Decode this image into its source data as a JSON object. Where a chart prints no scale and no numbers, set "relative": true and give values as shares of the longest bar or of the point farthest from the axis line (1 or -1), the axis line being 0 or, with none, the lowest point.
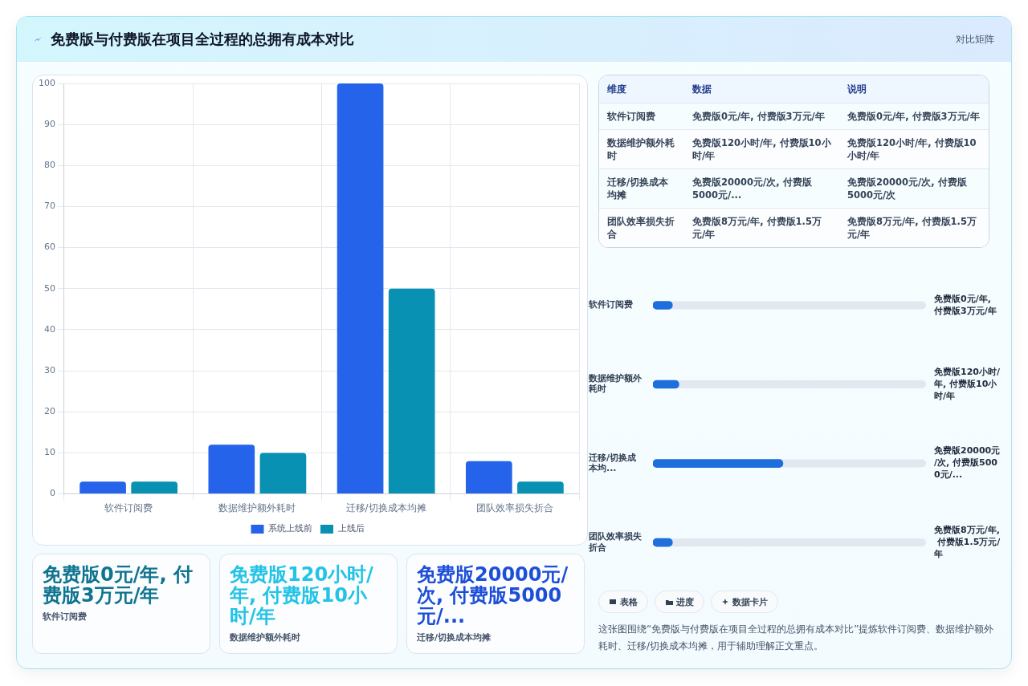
{
  "chart_data": [
    {
      "type": "bar",
      "title": "免费版与付费版在项目全过程的总拥有成本对比",
      "categories": [
        "软件订阅费",
        "数据维护额外耗时",
        "迁移/切换成本均摊",
        "团队效率损失折合"
      ],
      "series": [
        {
          "name": "系统上线前",
          "color": "#2563eb",
          "values": [
            3,
            12,
            100,
            8
          ]
        },
        {
          "name": "上线后",
          "color": "#0891b2",
          "values": [
            3,
            10,
            50,
            3
          ]
        }
      ],
      "ylim": [
        0,
        100
      ],
      "yticks": [
        0,
        10,
        20,
        30,
        40,
        50,
        60,
        70,
        80,
        90,
        100
      ],
      "grid": true,
      "legend": "bottom"
    },
    {
      "type": "other",
      "title": "对比矩阵",
      "annotations": [
        "维度",
        "数据",
        "说明",
        "软件订阅费",
        "免费版0元/年, 付费版3万元/年",
        "免费版0元/年, 付费版3万元/年",
        "数据维护额外耗时",
        "免费版120小时/年, 付费版10小时/年",
        "免费版120小时/年, 付费版10小时/年",
        "迁移/切换成本均摊",
        "免费版20000元/次, 付费版5000元/...",
        "免费版20000元/次, 付费版5000元/次",
        "团队效率损失折合",
        "免费版8万元/年, 付费版1.5万元/年",
        "免费版8万元/年, 付费版1.5万元/年"
      ]
    },
    {
      "type": "bar",
      "orientation": "horizontal",
      "relative": true,
      "categories": [
        "软件订阅费",
        "数据维护额外耗时",
        "迁移/切换成本均...",
        "团队效率损失折合"
      ],
      "values": [
        0.15,
        0.2,
        1,
        0.15
      ],
      "color": "#1e6fdc",
      "annotations": [
        "免费版0元/年, 付费版3万元/年",
        "免费版120小时/年, 付费版10小时/年",
        "免费版20000元/次, 付费版5000元/...",
        "免费版8万元/年, 付费版1.5万元/年"
      ]
    },
    {
      "type": "other",
      "annotations": [
        "免费版0元/年, 付费版3万元/年",
        "软件订阅费",
        "免费版120小时/年, 付费版10小时/年",
        "数据维护额外耗时",
        "免费版20000元/次, 付费版5000元/...",
        "迁移/切换成本均摊"
      ]
    },
    {
      "type": "other",
      "annotations": [
        "表格",
        "进度",
        "数据卡片",
        "这张图围绕“免费版与付费版在项目全过程的总拥有成本对比”提炼软件订阅费、数据维护额外耗时、迁移/切换成本均摊，用于辅助理解正文重点。"
      ]
    }
  ]
}
